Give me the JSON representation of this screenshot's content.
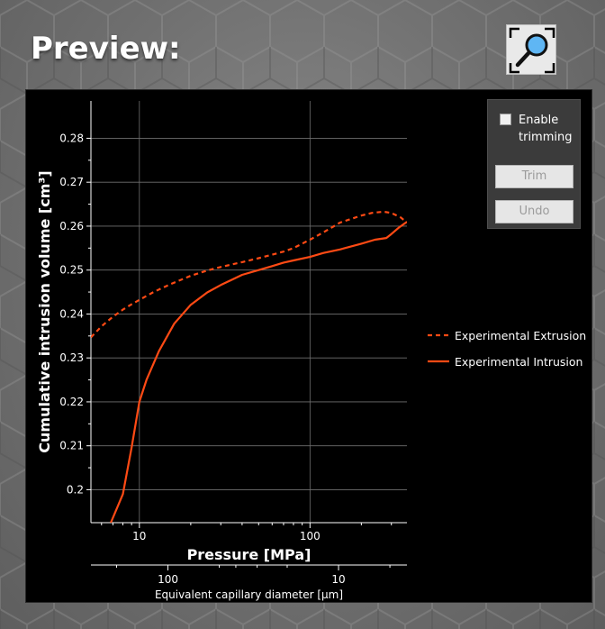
{
  "header": {
    "title": "Preview:"
  },
  "toolbar": {
    "zoom_icon": "magnifier-fit-icon"
  },
  "trim_panel": {
    "enable_label": "Enable trimming",
    "trim_label": "Trim",
    "undo_label": "Undo",
    "checked": false
  },
  "colors": {
    "series": "#ff4a14",
    "background": "#000000",
    "grid": "#6f6f6f"
  },
  "chart_data": {
    "type": "line",
    "xlabel": "Pressure [MPa]",
    "ylabel": "Cumulative intrusion volume [cm³]",
    "x_scale": "log",
    "xlim": [
      5.2,
      370
    ],
    "ylim": [
      0.1925,
      0.2885
    ],
    "x_ticks": [
      10,
      100
    ],
    "y_ticks": [
      0.2,
      0.21,
      0.22,
      0.23,
      0.24,
      0.25,
      0.26,
      0.27,
      0.28
    ],
    "grid": true,
    "secondary_x": {
      "label": "Equivalent capillary diameter [µm]",
      "scale": "log",
      "ticks": [
        100,
        10
      ]
    },
    "legend": {
      "position": "right"
    },
    "series": [
      {
        "name": "Experimental Extrusion",
        "style": "dashed",
        "x": [
          5.2,
          6,
          7,
          8,
          9,
          10,
          12,
          15,
          20,
          25,
          30,
          40,
          50,
          60,
          70,
          80,
          100,
          120,
          150,
          200,
          230,
          270,
          300,
          340,
          370
        ],
        "y": [
          0.2347,
          0.2372,
          0.2394,
          0.241,
          0.2422,
          0.2432,
          0.2449,
          0.2467,
          0.2487,
          0.2499,
          0.2507,
          0.2518,
          0.2527,
          0.2535,
          0.2542,
          0.255,
          0.2569,
          0.2586,
          0.2608,
          0.2624,
          0.263,
          0.2633,
          0.263,
          0.262,
          0.2608
        ]
      },
      {
        "name": "Experimental Intrusion",
        "style": "solid",
        "x": [
          6.8,
          8,
          9,
          10,
          11,
          13,
          16,
          20,
          25,
          30,
          40,
          50,
          60,
          70,
          80,
          100,
          120,
          150,
          200,
          240,
          280,
          300,
          330,
          370
        ],
        "y": [
          0.1925,
          0.199,
          0.2095,
          0.22,
          0.225,
          0.2315,
          0.2378,
          0.2421,
          0.2449,
          0.2466,
          0.2489,
          0.25,
          0.2509,
          0.2517,
          0.2522,
          0.253,
          0.2539,
          0.2547,
          0.256,
          0.2569,
          0.2573,
          0.2582,
          0.2596,
          0.261
        ]
      }
    ]
  }
}
